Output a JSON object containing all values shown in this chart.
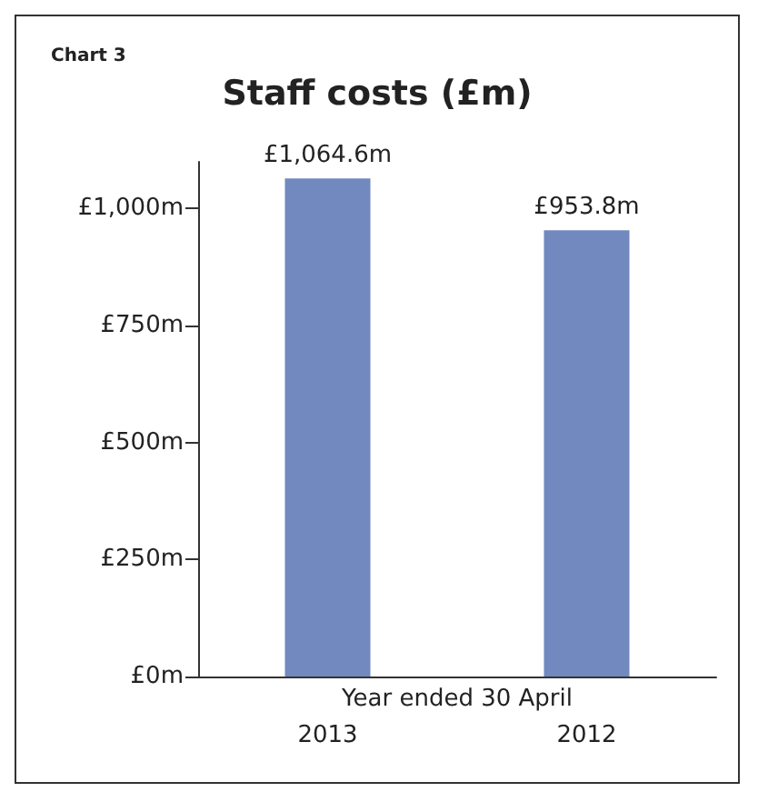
{
  "chart_data": {
    "type": "bar",
    "title": "Staff costs (£m)",
    "subtitle": "Chart 3",
    "xlabel": "Year ended 30 April",
    "categories": [
      "2013",
      "2012"
    ],
    "values": [
      1064.6,
      953.8
    ],
    "color": "#7189bf",
    "value_labels": [
      "£1,064.6m",
      "£953.8m"
    ],
    "ylim": [
      0,
      1100
    ],
    "yticks": [
      {
        "value": 0,
        "label": "£0m"
      },
      {
        "value": 250,
        "label": "£250m"
      },
      {
        "value": 500,
        "label": "£500m"
      },
      {
        "value": 750,
        "label": "£750m"
      },
      {
        "value": 1000,
        "label": "£1,000m"
      }
    ],
    "grid": false
  }
}
